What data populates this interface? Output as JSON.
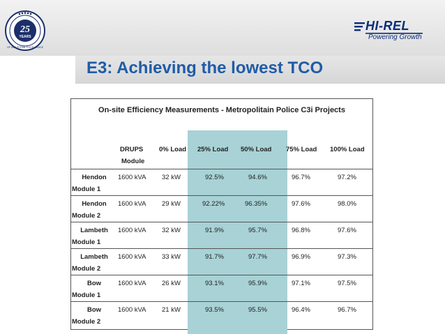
{
  "logo_left": {
    "icon": "anniversary-seal-icon",
    "number": "25",
    "label": "YEARS",
    "ring_text": "OF INDUSTRIAL EXCELLENCE"
  },
  "logo_right": {
    "icon": "hirel-logo-icon",
    "name": "HI-REL",
    "tagline": "Powering Growth",
    "color": "#0a2d7a"
  },
  "slide": {
    "title": "E3:  Achieving the lowest TCO",
    "title_color": "#1f5ca8",
    "highlight_color": "#a8d2d6"
  },
  "table": {
    "title": "On-site Efficiency Measurements - Metropolitain Police C3i Projects",
    "headers": {
      "drups_line1": "DRUPS",
      "drups_line2": "Module",
      "load0": "0% Load",
      "load25": "25% Load",
      "load50": "50% Load",
      "load75": "75% Load",
      "load100": "100% Load"
    },
    "rows": [
      {
        "site": "Hendon",
        "module": "Module 1",
        "drups": "1600 kVA",
        "load0": "32 kW",
        "load25": "92.5%",
        "load50": "94.6%",
        "load75": "96.7%",
        "load100": "97.2%"
      },
      {
        "site": "Hendon",
        "module": "Module 2",
        "drups": "1600 kVA",
        "load0": "29 kW",
        "load25": "92.22%",
        "load50": "96.35%",
        "load75": "97.6%",
        "load100": "98.0%"
      },
      {
        "site": "Lambeth",
        "module": "Module 1",
        "drups": "1600 kVA",
        "load0": "32 kW",
        "load25": "91.9%",
        "load50": "95.7%",
        "load75": "96.8%",
        "load100": "97.6%"
      },
      {
        "site": "Lambeth",
        "module": "Module 2",
        "drups": "1600 kVA",
        "load0": "33 kW",
        "load25": "91.7%",
        "load50": "97.7%",
        "load75": "96.9%",
        "load100": "97.3%"
      },
      {
        "site": "Bow",
        "module": "Module 1",
        "drups": "1600 kVA",
        "load0": "26 kW",
        "load25": "93.1%",
        "load50": "95.9%",
        "load75": "97.1%",
        "load100": "97.5%"
      },
      {
        "site": "Bow",
        "module": "Module 2",
        "drups": "1600 kVA",
        "load0": "21 kW",
        "load25": "93.5%",
        "load50": "95.5%",
        "load75": "96.4%",
        "load100": "96.7%"
      }
    ]
  }
}
